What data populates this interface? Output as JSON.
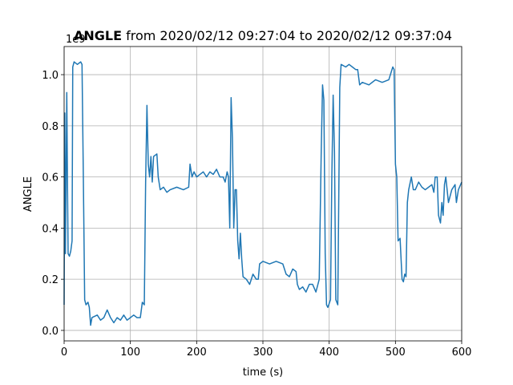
{
  "chart_data": {
    "type": "line",
    "title_bold": "ANGLE",
    "title": "from 2020/02/12 09:27:04 to 2020/02/12 09:37:04",
    "x_label": "time (s)",
    "y_label": "ANGLE",
    "y_offset_text": "1e9",
    "grid": true,
    "xlim": [
      0,
      600
    ],
    "ylim": [
      -0.041,
      1.11
    ],
    "xticks": [
      0,
      100,
      200,
      300,
      400,
      500,
      600
    ],
    "yticks": [
      {
        "value": 0,
        "label": "0.0"
      },
      {
        "value": 0.2,
        "label": "0.2"
      },
      {
        "value": 0.4,
        "label": "0.4"
      },
      {
        "value": 0.6,
        "label": "0.6"
      },
      {
        "value": 0.8,
        "label": "0.8"
      },
      {
        "value": 1.0,
        "label": "1.0"
      }
    ],
    "series": [
      {
        "name": "ANGLE",
        "color": "#1f77b4",
        "x": [
          0,
          1,
          2,
          3,
          4,
          5,
          6,
          8,
          10,
          12,
          13,
          15,
          20,
          25,
          27,
          29,
          31,
          33,
          36,
          38,
          40,
          42,
          50,
          55,
          60,
          65,
          70,
          75,
          80,
          85,
          90,
          95,
          100,
          105,
          110,
          115,
          118,
          121,
          123,
          125,
          127,
          129,
          131,
          133,
          135,
          140,
          142,
          145,
          150,
          155,
          160,
          170,
          180,
          188,
          190,
          193,
          196,
          200,
          205,
          210,
          215,
          220,
          225,
          230,
          235,
          240,
          243,
          246,
          248,
          250,
          252,
          254,
          256,
          258,
          260,
          262,
          264,
          266,
          268,
          270,
          275,
          280,
          285,
          290,
          293,
          295,
          300,
          310,
          320,
          330,
          335,
          340,
          345,
          350,
          352,
          355,
          360,
          365,
          370,
          375,
          380,
          385,
          388,
          390,
          392,
          394,
          396,
          398,
          402,
          404,
          406,
          408,
          410,
          413,
          416,
          418,
          425,
          430,
          435,
          440,
          443,
          446,
          450,
          460,
          465,
          470,
          480,
          490,
          496,
          498,
          500,
          502,
          504,
          507,
          510,
          512,
          514,
          516,
          518,
          520,
          524,
          527,
          530,
          535,
          540,
          545,
          550,
          555,
          558,
          560,
          563,
          565,
          568,
          570,
          572,
          574,
          576,
          580,
          585,
          590,
          592,
          595,
          600
        ],
        "values": [
          0.1,
          0.85,
          0.3,
          0.6,
          0.93,
          0.6,
          0.3,
          0.29,
          0.31,
          0.35,
          1.03,
          1.05,
          1.04,
          1.05,
          1.04,
          0.6,
          0.12,
          0.1,
          0.11,
          0.09,
          0.02,
          0.05,
          0.06,
          0.04,
          0.05,
          0.08,
          0.05,
          0.03,
          0.05,
          0.04,
          0.06,
          0.04,
          0.05,
          0.06,
          0.05,
          0.05,
          0.11,
          0.1,
          0.58,
          0.88,
          0.65,
          0.6,
          0.68,
          0.58,
          0.68,
          0.69,
          0.6,
          0.55,
          0.56,
          0.54,
          0.55,
          0.56,
          0.55,
          0.56,
          0.65,
          0.6,
          0.62,
          0.6,
          0.61,
          0.62,
          0.6,
          0.62,
          0.61,
          0.63,
          0.6,
          0.6,
          0.58,
          0.62,
          0.6,
          0.4,
          0.91,
          0.75,
          0.4,
          0.55,
          0.55,
          0.35,
          0.28,
          0.38,
          0.28,
          0.21,
          0.2,
          0.18,
          0.22,
          0.2,
          0.2,
          0.26,
          0.27,
          0.26,
          0.27,
          0.26,
          0.22,
          0.21,
          0.24,
          0.23,
          0.18,
          0.16,
          0.17,
          0.15,
          0.18,
          0.18,
          0.15,
          0.2,
          0.7,
          0.96,
          0.9,
          0.3,
          0.1,
          0.09,
          0.12,
          0.6,
          0.92,
          0.7,
          0.12,
          0.1,
          0.95,
          1.04,
          1.03,
          1.04,
          1.03,
          1.02,
          1.02,
          0.96,
          0.97,
          0.96,
          0.97,
          0.98,
          0.97,
          0.98,
          1.03,
          1.02,
          0.65,
          0.6,
          0.35,
          0.36,
          0.2,
          0.19,
          0.22,
          0.21,
          0.5,
          0.55,
          0.6,
          0.55,
          0.55,
          0.58,
          0.56,
          0.55,
          0.56,
          0.57,
          0.54,
          0.6,
          0.6,
          0.45,
          0.42,
          0.5,
          0.45,
          0.57,
          0.6,
          0.5,
          0.55,
          0.57,
          0.5,
          0.55,
          0.58
        ]
      }
    ]
  }
}
